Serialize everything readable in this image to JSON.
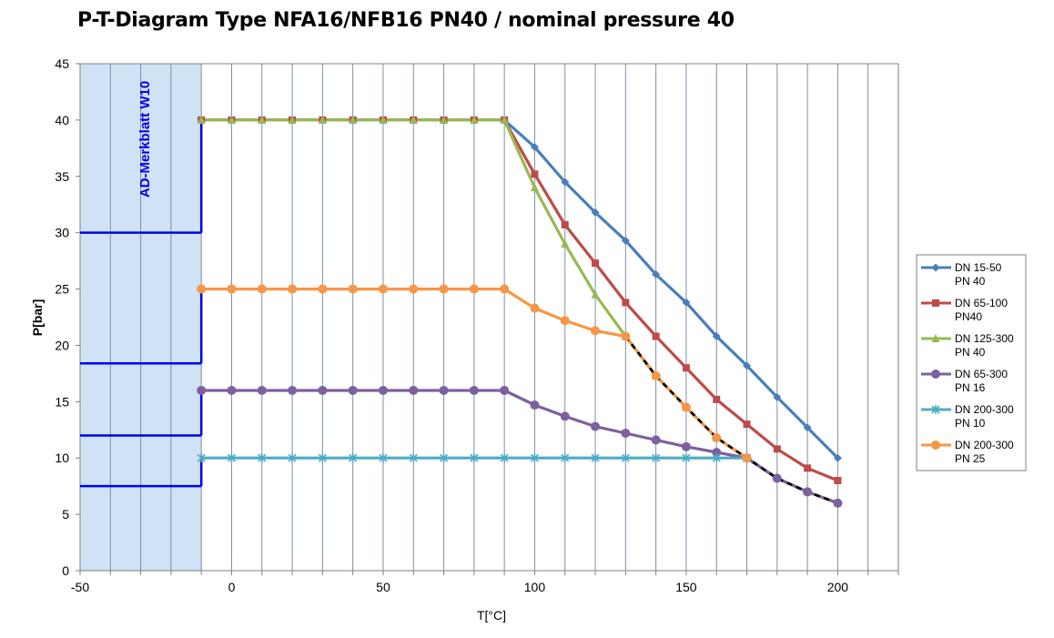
{
  "chart_data": {
    "type": "line",
    "title": "P-T-Diagram Type NFA16/NFB16 PN40 / nominal pressure 40",
    "xlabel": "T[°C]",
    "ylabel": "P[bar]",
    "xlim": [
      -50,
      220
    ],
    "ylim": [
      0,
      45
    ],
    "xticks": [
      -50,
      0,
      50,
      100,
      150,
      200
    ],
    "yticks": [
      0,
      5,
      10,
      15,
      20,
      25,
      30,
      35,
      40,
      45
    ],
    "grid": "vertical",
    "legend_position": "right",
    "region": {
      "label": "AD-Merkblatt W10",
      "x_range": [
        -50,
        -10
      ],
      "fill": "#cfe2f6",
      "line_color": "#0000ee",
      "steps": [
        {
          "x": [
            -50,
            -10
          ],
          "y": 7.5
        },
        {
          "x": [
            -10,
            -10
          ],
          "y": [
            7.5,
            10
          ]
        },
        {
          "x": [
            -50,
            -10
          ],
          "y": 12
        },
        {
          "x": [
            -10,
            -10
          ],
          "y": [
            12,
            16
          ]
        },
        {
          "x": [
            -50,
            -10
          ],
          "y": 18.4
        },
        {
          "x": [
            -10,
            -10
          ],
          "y": [
            18.4,
            25
          ]
        },
        {
          "x": [
            -50,
            -10
          ],
          "y": 30
        },
        {
          "x": [
            -10,
            -10
          ],
          "y": [
            30,
            40
          ]
        }
      ]
    },
    "series": [
      {
        "name": "DN 15-50 PN 40",
        "color": "#4a7ebb",
        "marker": "diamond",
        "x": [
          -10,
          0,
          10,
          20,
          30,
          40,
          50,
          60,
          70,
          80,
          90,
          100,
          110,
          120,
          130,
          140,
          150,
          160,
          170,
          180,
          190,
          200
        ],
        "y": [
          40,
          40,
          40,
          40,
          40,
          40,
          40,
          40,
          40,
          40,
          40,
          37.6,
          34.5,
          31.8,
          29.3,
          26.3,
          23.8,
          20.8,
          18.2,
          15.4,
          12.7,
          10
        ]
      },
      {
        "name": "DN 65-100 PN40",
        "color": "#be4b48",
        "marker": "square",
        "x": [
          -10,
          0,
          10,
          20,
          30,
          40,
          50,
          60,
          70,
          80,
          90,
          100,
          110,
          120,
          130,
          140,
          150,
          160,
          170,
          180,
          190,
          200
        ],
        "y": [
          40,
          40,
          40,
          40,
          40,
          40,
          40,
          40,
          40,
          40,
          40,
          35.2,
          30.7,
          27.3,
          23.8,
          20.8,
          18,
          15.2,
          13,
          10.8,
          9.1,
          8
        ]
      },
      {
        "name": "DN 125-300 PN 40",
        "color": "#98b954",
        "marker": "triangle",
        "x": [
          -10,
          0,
          10,
          20,
          30,
          40,
          50,
          60,
          70,
          80,
          90,
          100,
          110,
          120,
          130,
          140,
          150,
          160,
          170,
          180,
          190,
          200
        ],
        "y": [
          40,
          40,
          40,
          40,
          40,
          40,
          40,
          40,
          40,
          40,
          40,
          34,
          29,
          24.5,
          20.8,
          17.3,
          14.5,
          11.8,
          10,
          8.2,
          7,
          6
        ]
      },
      {
        "name": "DN 65-300 PN 16",
        "color": "#7d60a0",
        "marker": "circle",
        "x": [
          -10,
          0,
          10,
          20,
          30,
          40,
          50,
          60,
          70,
          80,
          90,
          100,
          110,
          120,
          130,
          140,
          150,
          160,
          170,
          180,
          190,
          200
        ],
        "y": [
          16,
          16,
          16,
          16,
          16,
          16,
          16,
          16,
          16,
          16,
          16,
          14.7,
          13.7,
          12.8,
          12.2,
          11.6,
          11,
          10.5,
          10,
          8.2,
          7,
          6
        ]
      },
      {
        "name": "DN 200-300 PN 10",
        "color": "#4bacc6",
        "marker": "star",
        "x": [
          -10,
          0,
          10,
          20,
          30,
          40,
          50,
          60,
          70,
          80,
          90,
          100,
          110,
          120,
          130,
          140,
          150,
          160,
          170
        ],
        "y": [
          10,
          10,
          10,
          10,
          10,
          10,
          10,
          10,
          10,
          10,
          10,
          10,
          10,
          10,
          10,
          10,
          10,
          10,
          10
        ]
      },
      {
        "name": "DN 200-300 PN 25",
        "color": "#f79646",
        "marker": "circle",
        "x": [
          -10,
          0,
          10,
          20,
          30,
          40,
          50,
          60,
          70,
          80,
          90,
          100,
          110,
          120,
          130,
          140,
          150,
          160,
          170
        ],
        "y": [
          25,
          25,
          25,
          25,
          25,
          25,
          25,
          25,
          25,
          25,
          25,
          23.3,
          22.2,
          21.3,
          20.8,
          17.3,
          14.5,
          11.8,
          10
        ]
      }
    ],
    "dashed_overlay": {
      "color": "#000000",
      "x": [
        130,
        140,
        150,
        160,
        170,
        180,
        190,
        200
      ],
      "y": [
        20.8,
        17.3,
        14.5,
        11.8,
        10,
        8.2,
        7,
        6
      ]
    },
    "legend": [
      {
        "line1": "DN 15-50",
        "line2": "PN 40"
      },
      {
        "line1": "DN 65-100",
        "line2": "PN40"
      },
      {
        "line1": "DN 125-300",
        "line2": "PN 40"
      },
      {
        "line1": "DN 65-300",
        "line2": "PN 16"
      },
      {
        "line1": "DN 200-300",
        "line2": "PN 10"
      },
      {
        "line1": "DN 200-300",
        "line2": "PN 25"
      }
    ]
  }
}
